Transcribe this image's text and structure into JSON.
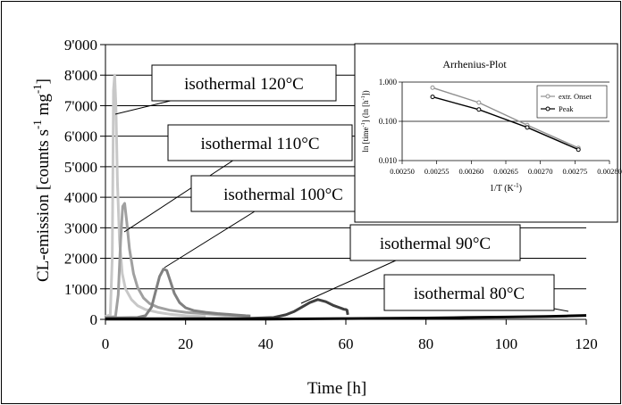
{
  "chart_data": [
    {
      "type": "line",
      "xlabel": "Time [h]",
      "ylabel_main": "CL-emission [counts s",
      "ylabel_sup1": "-1",
      "ylabel_mid": " mg",
      "ylabel_sup2": "-1",
      "ylabel_end": "]",
      "xlim": [
        0,
        120
      ],
      "ylim": [
        0,
        9000
      ],
      "x_ticks": [
        0,
        20,
        40,
        60,
        80,
        100,
        120
      ],
      "x_tick_labels": [
        "0",
        "20",
        "40",
        "60",
        "80",
        "100",
        "120"
      ],
      "y_ticks": [
        0,
        1000,
        2000,
        3000,
        4000,
        5000,
        6000,
        7000,
        8000,
        9000
      ],
      "y_tick_labels": [
        "0",
        "1'000",
        "2'000",
        "3'000",
        "4'000",
        "5'000",
        "6'000",
        "7'000",
        "8'000",
        "9'000"
      ],
      "grid": "horizontal",
      "series": [
        {
          "name": "isothermal 120°C",
          "color": "#c8c8c8",
          "x": [
            0,
            1.2,
            1.7,
            2.0,
            2.3,
            2.6,
            3.0,
            3.5,
            4.2,
            5.0,
            6.5,
            8.0,
            10,
            13,
            16,
            20,
            25
          ],
          "y": [
            100,
            150,
            2000,
            7500,
            8000,
            7000,
            4500,
            2600,
            1500,
            1000,
            650,
            450,
            320,
            230,
            170,
            120,
            90
          ]
        },
        {
          "name": "isothermal 110°C",
          "color": "#a0a0a0",
          "x": [
            0,
            2.5,
            3.2,
            3.8,
            4.3,
            4.8,
            5.3,
            6.0,
            7.0,
            8.0,
            9.5,
            11,
            13,
            16,
            20,
            25,
            30,
            36
          ],
          "y": [
            60,
            90,
            800,
            2600,
            3700,
            3800,
            3200,
            2300,
            1500,
            1050,
            700,
            520,
            400,
            300,
            230,
            180,
            140,
            110
          ]
        },
        {
          "name": "isothermal 100°C",
          "color": "#808080",
          "x": [
            0,
            8,
            10,
            11.5,
            12.5,
            13.5,
            14.5,
            15.3,
            16.2,
            17.2,
            18.5,
            20,
            22,
            25,
            28,
            31,
            33,
            35,
            36.2
          ],
          "y": [
            40,
            60,
            120,
            400,
            900,
            1400,
            1650,
            1600,
            1250,
            850,
            550,
            380,
            290,
            230,
            190,
            160,
            140,
            120,
            110
          ]
        },
        {
          "name": "isothermal 90°C",
          "color": "#404040",
          "x": [
            0,
            35,
            42,
            45,
            47,
            49,
            51,
            53,
            55,
            57,
            58.5,
            59.5,
            60,
            60.3,
            60.5
          ],
          "y": [
            20,
            30,
            60,
            150,
            250,
            400,
            550,
            650,
            580,
            450,
            380,
            330,
            320,
            300,
            150
          ]
        },
        {
          "name": "isothermal 80°C",
          "color": "#000000",
          "x": [
            0,
            40,
            60,
            80,
            90,
            100,
            110,
            115,
            120
          ],
          "y": [
            5,
            10,
            25,
            45,
            60,
            75,
            95,
            110,
            130
          ]
        }
      ],
      "annotations": [
        {
          "text": "isothermal 120°C",
          "x": 2.0,
          "y": 7500
        },
        {
          "text": "isothermal 110°C",
          "x": 4.8,
          "y": 3500
        },
        {
          "text": "isothermal 100°C",
          "x": 14.5,
          "y": 1650
        },
        {
          "text": "isothermal 90°C",
          "x": 53,
          "y": 650
        },
        {
          "text": "isothermal 80°C",
          "x": 117,
          "y": 110
        }
      ]
    },
    {
      "type": "line",
      "title": "Arrhenius-Plot",
      "xlabel": "1/T (K",
      "xlabel_sup": "-1",
      "xlabel_end": ")",
      "ylabel_a": "ln [time",
      "ylabel_sup1": "-1",
      "ylabel_b": "] (ln [h",
      "ylabel_sup2": "-1",
      "ylabel_c": "])",
      "y_scale": "log",
      "xlim": [
        0.0025,
        0.0028
      ],
      "ylim": [
        0.01,
        1
      ],
      "x_ticks": [
        0.0025,
        0.00255,
        0.0026,
        0.00265,
        0.0027,
        0.00275,
        0.0028
      ],
      "x_tick_labels": [
        "0.00250",
        "0.00255",
        "0.00260",
        "0.00265",
        "0.00270",
        "0.00275",
        "0.00280"
      ],
      "y_ticks": [
        0.01,
        0.1,
        1
      ],
      "y_tick_labels": [
        "0.010",
        "0.100",
        "1.000"
      ],
      "legend": "right",
      "series": [
        {
          "name": "extr. Onset",
          "color": "#909090",
          "x": [
            0.002544,
            0.002611,
            0.002681,
            0.002755
          ],
          "y": [
            0.72,
            0.3,
            0.08,
            0.021
          ]
        },
        {
          "name": "Peak",
          "color": "#000000",
          "x": [
            0.002544,
            0.002611,
            0.002681,
            0.002755
          ],
          "y": [
            0.42,
            0.2,
            0.07,
            0.019
          ]
        }
      ]
    }
  ]
}
